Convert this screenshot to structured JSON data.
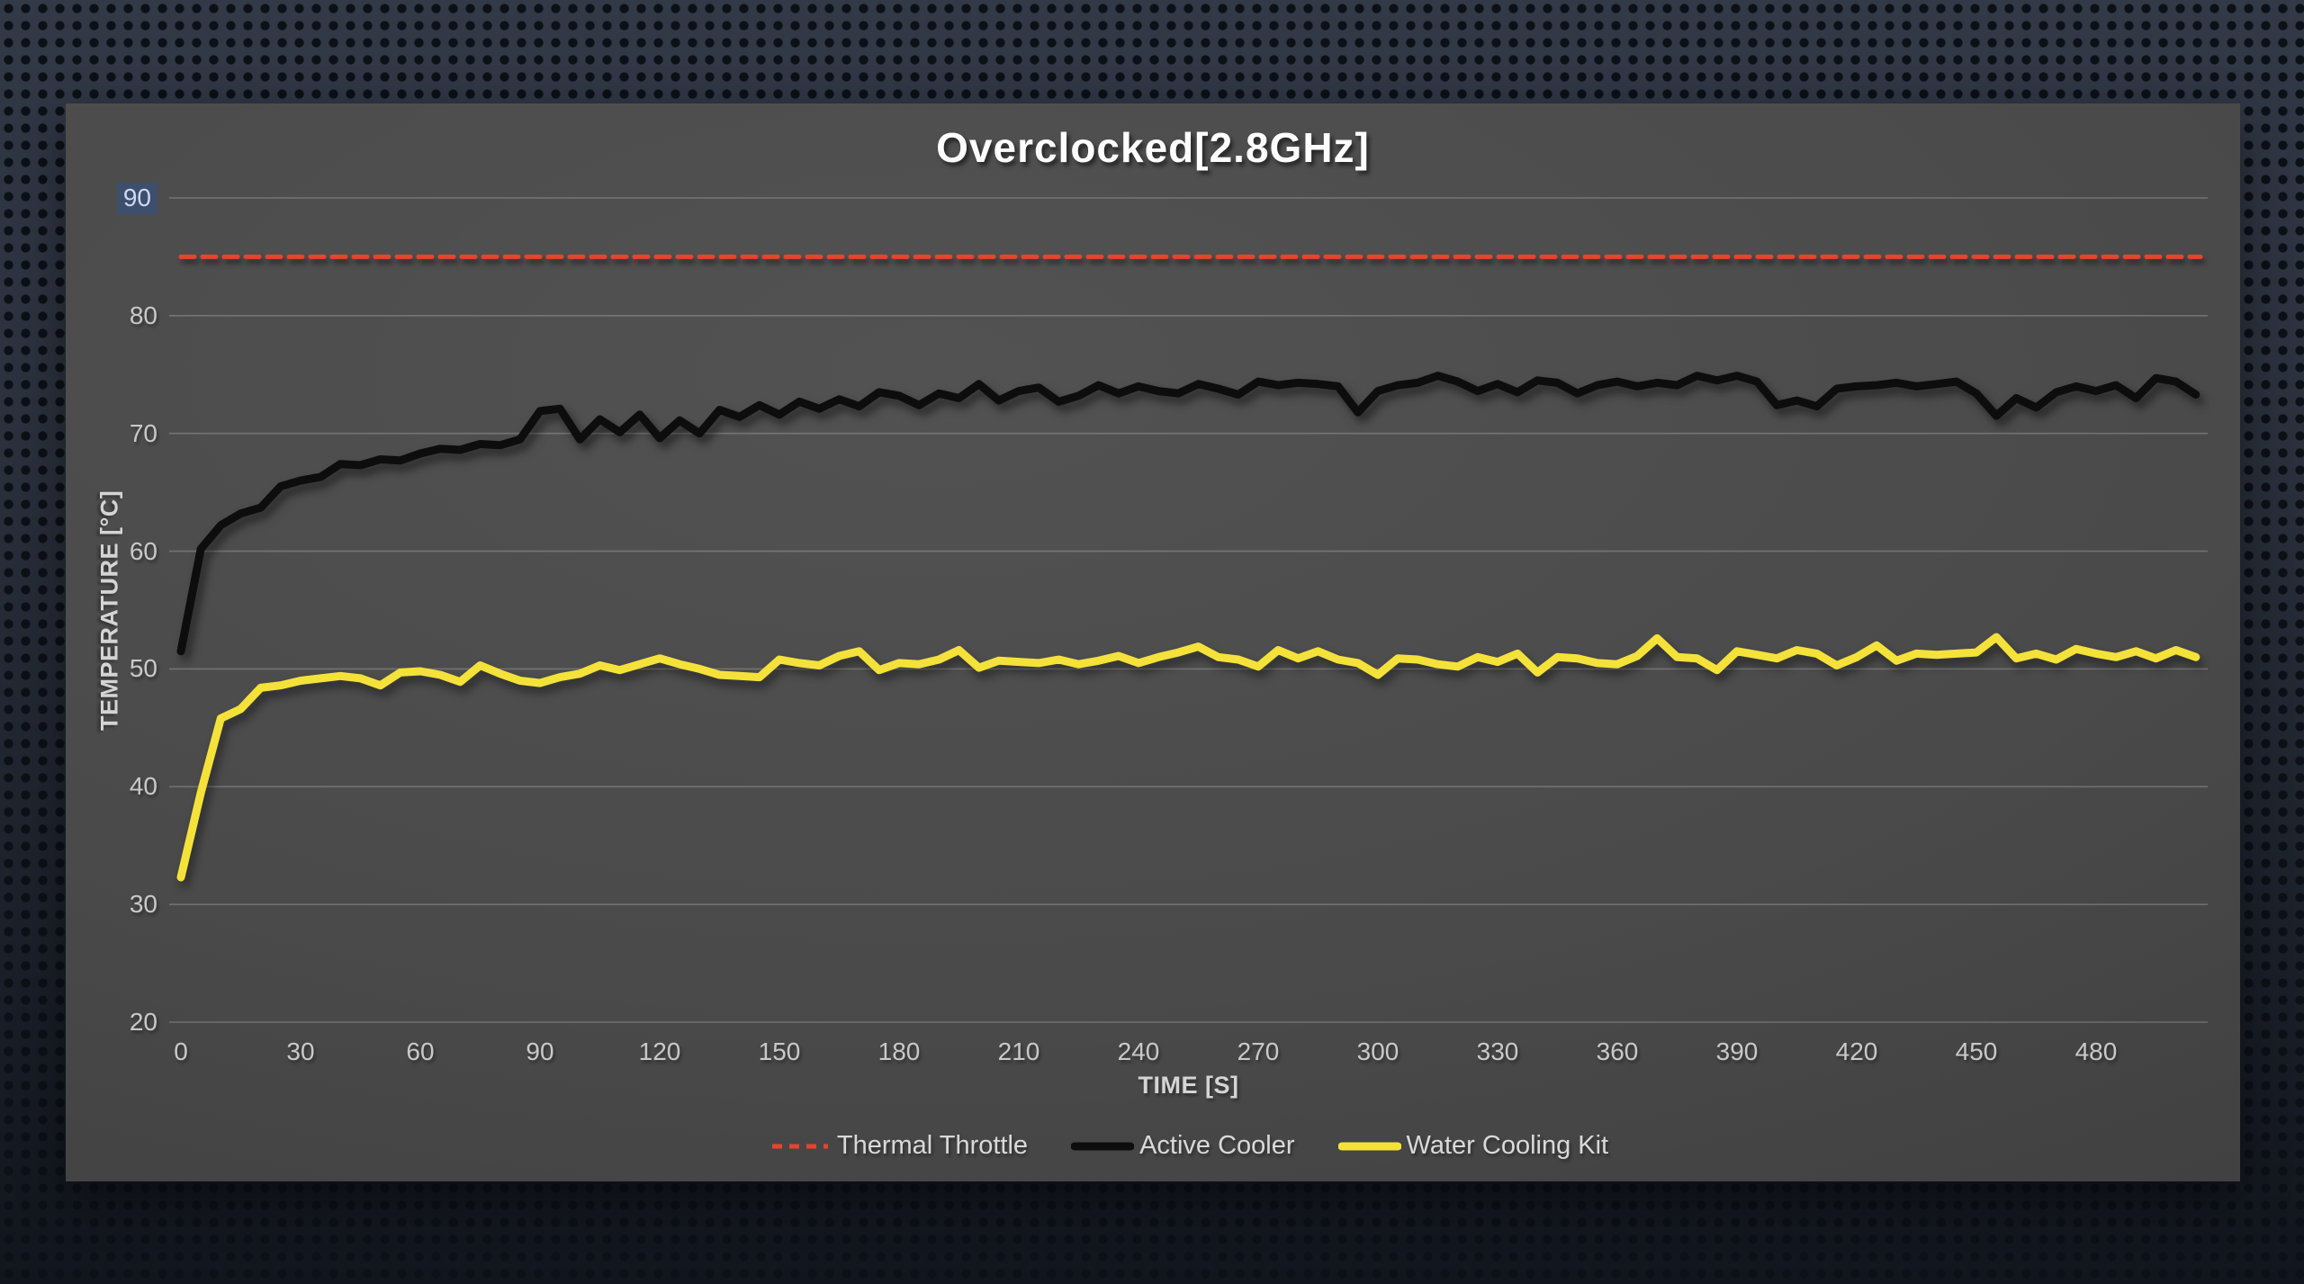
{
  "title": "Overclocked[2.8GHz]",
  "colors": {
    "thermal_throttle": "#e8432c",
    "active_cooler": "#0d0d0d",
    "water_cooling_kit": "#f4e23a",
    "selected_tick_background": "#3d4f6c",
    "selected_tick_text": "#cdd8f2"
  },
  "chart_data": {
    "type": "line",
    "title": "Overclocked[2.8GHz]",
    "xlabel": "TIME [S]",
    "ylabel": "TEMPERATURE [°C]",
    "ylim": [
      20,
      90
    ],
    "y_ticks": [
      90,
      80,
      70,
      60,
      50,
      40,
      30,
      20
    ],
    "selected_y_tick": 90,
    "x_ticks": [
      0,
      30,
      60,
      90,
      120,
      150,
      180,
      210,
      240,
      270,
      300,
      330,
      360,
      390,
      420,
      450,
      480
    ],
    "grid": "horizontal",
    "legend_position": "bottom",
    "x_start": 0,
    "x_step": 5,
    "x_end": 505,
    "series": [
      {
        "name": "Thermal Throttle",
        "style": "dashed",
        "color": "#e8432c",
        "constant_value": 85
      },
      {
        "name": "Active Cooler",
        "style": "solid",
        "color": "#0d0d0d",
        "values": [
          51.5,
          60.2,
          62.2,
          63.2,
          63.7,
          65.5,
          66.0,
          66.3,
          67.4,
          67.3,
          67.8,
          67.7,
          68.3,
          68.7,
          68.6,
          69.1,
          69.0,
          69.5,
          71.9,
          72.1,
          69.5,
          71.2,
          70.1,
          71.6,
          69.6,
          71.1,
          70.0,
          72.0,
          71.4,
          72.4,
          71.6,
          72.7,
          72.1,
          72.9,
          72.3,
          73.5,
          73.2,
          72.4,
          73.4,
          73.0,
          74.2,
          72.8,
          73.6,
          73.9,
          72.7,
          73.2,
          74.1,
          73.4,
          74.0,
          73.6,
          73.4,
          74.2,
          73.8,
          73.3,
          74.4,
          74.1,
          74.3,
          74.2,
          74.0,
          71.8,
          73.6,
          74.1,
          74.3,
          74.9,
          74.4,
          73.6,
          74.2,
          73.5,
          74.5,
          74.3,
          73.4,
          74.1,
          74.4,
          74.0,
          74.3,
          74.1,
          74.9,
          74.5,
          74.9,
          74.4,
          72.4,
          72.8,
          72.3,
          73.8,
          74.0,
          74.1,
          74.3,
          74.0,
          74.2,
          74.4,
          73.4,
          71.5,
          73.0,
          72.2,
          73.5,
          74.0,
          73.6,
          74.1,
          73.0,
          74.7,
          74.4,
          73.3
        ]
      },
      {
        "name": "Water Cooling Kit",
        "style": "solid",
        "color": "#f4e23a",
        "values": [
          32.3,
          39.5,
          45.8,
          46.6,
          48.4,
          48.6,
          49.0,
          49.2,
          49.4,
          49.2,
          48.6,
          49.7,
          49.8,
          49.5,
          48.9,
          50.3,
          49.6,
          49.0,
          48.8,
          49.3,
          49.6,
          50.3,
          49.9,
          50.4,
          50.9,
          50.4,
          50.0,
          49.5,
          49.4,
          49.3,
          50.8,
          50.5,
          50.3,
          51.1,
          51.5,
          49.9,
          50.5,
          50.4,
          50.8,
          51.6,
          50.1,
          50.7,
          50.6,
          50.5,
          50.8,
          50.4,
          50.7,
          51.1,
          50.5,
          51.0,
          51.4,
          51.9,
          51.0,
          50.8,
          50.2,
          51.6,
          50.9,
          51.5,
          50.8,
          50.5,
          49.5,
          50.9,
          50.8,
          50.4,
          50.2,
          51.0,
          50.6,
          51.3,
          49.7,
          51.0,
          50.9,
          50.5,
          50.4,
          51.1,
          52.6,
          51.0,
          50.9,
          49.9,
          51.5,
          51.2,
          50.9,
          51.6,
          51.3,
          50.3,
          51.0,
          52.0,
          50.7,
          51.3,
          51.2,
          51.3,
          51.4,
          52.7,
          50.9,
          51.3,
          50.8,
          51.7,
          51.3,
          51.0,
          51.5,
          50.9,
          51.6,
          51.0
        ]
      }
    ]
  }
}
